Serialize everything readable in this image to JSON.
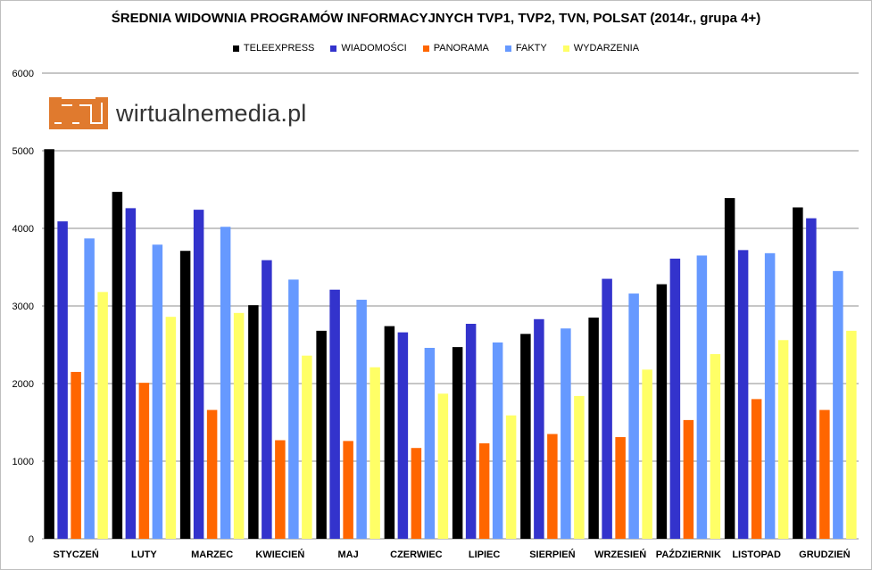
{
  "chart_data": {
    "type": "bar",
    "title": "ŚREDNIA WIDOWNIA PROGRAMÓW INFORMACYJNYCH TVP1, TVP2, TVN, POLSAT (2014r., grupa 4+)",
    "xlabel": "",
    "ylabel": "",
    "ylim": [
      0,
      6000
    ],
    "yticks": [
      0,
      1000,
      2000,
      3000,
      4000,
      5000,
      6000
    ],
    "grid": true,
    "legend_position": "top",
    "categories": [
      "STYCZEŃ",
      "LUTY",
      "MARZEC",
      "KWIECIEŃ",
      "MAJ",
      "CZERWIEC",
      "LIPIEC",
      "SIERPIEŃ",
      "WRZESIEŃ",
      "PAŹDZIERNIK",
      "LISTOPAD",
      "GRUDZIEŃ"
    ],
    "series": [
      {
        "name": "TELEEXPRESS",
        "color": "#000000",
        "values": [
          5020,
          4470,
          3710,
          3010,
          2680,
          2740,
          2470,
          2640,
          2850,
          3280,
          4390,
          4270
        ]
      },
      {
        "name": "WIADOMOŚCI",
        "color": "#3333cc",
        "values": [
          4090,
          4260,
          4240,
          3590,
          3210,
          2660,
          2770,
          2830,
          3350,
          3610,
          3720,
          4130
        ]
      },
      {
        "name": "PANORAMA",
        "color": "#ff6600",
        "values": [
          2150,
          2010,
          1660,
          1270,
          1260,
          1170,
          1230,
          1350,
          1310,
          1530,
          1800,
          1660
        ]
      },
      {
        "name": "FAKTY",
        "color": "#6699ff",
        "values": [
          3870,
          3790,
          4020,
          3340,
          3080,
          2460,
          2530,
          2710,
          3160,
          3650,
          3680,
          3450
        ]
      },
      {
        "name": "WYDARZENIA",
        "color": "#ffff66",
        "values": [
          3180,
          2860,
          2910,
          2360,
          2210,
          1870,
          1590,
          1840,
          2180,
          2380,
          2560,
          2680
        ]
      }
    ]
  },
  "logo": {
    "text": "wirtualnemedia.pl"
  }
}
